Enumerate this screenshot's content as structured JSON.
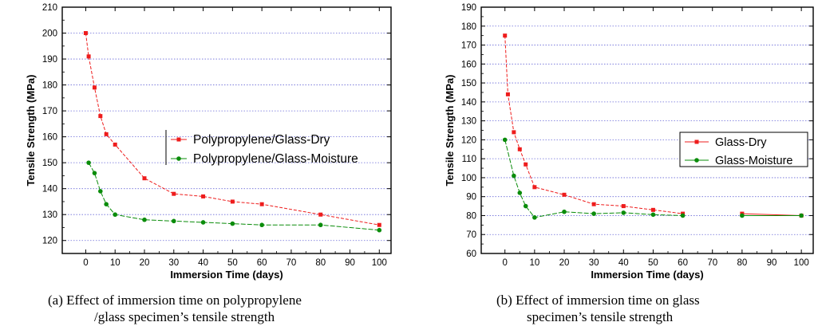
{
  "chart_data": [
    {
      "type": "line",
      "xlabel": "Immersion Time (days)",
      "ylabel": "Tensile Strength (MPa)",
      "xlim": [
        -8,
        104
      ],
      "ylim": [
        115,
        210
      ],
      "xticks": [
        0,
        10,
        20,
        30,
        40,
        50,
        60,
        70,
        80,
        90,
        100
      ],
      "yticks": [
        120,
        130,
        140,
        150,
        160,
        170,
        180,
        190,
        200,
        210
      ],
      "grid": "horizontal dotted",
      "legend_position": "middle-right",
      "series": [
        {
          "name": "Polypropylene/Glass-Dry",
          "color": "#ee1c1c",
          "marker": "square",
          "x": [
            0,
            1,
            3,
            5,
            7,
            10,
            20,
            30,
            40,
            50,
            60,
            80,
            100
          ],
          "y": [
            200,
            191,
            179,
            168,
            161,
            157,
            144,
            138,
            137,
            135,
            134,
            130,
            126
          ]
        },
        {
          "name": "Polypropylene/Glass-Moisture",
          "color": "#0a8c0a",
          "marker": "circle",
          "x": [
            1,
            3,
            5,
            7,
            10,
            20,
            30,
            40,
            50,
            60,
            80,
            100
          ],
          "y": [
            150,
            146,
            139,
            134,
            130,
            128,
            127.5,
            127,
            126.5,
            126,
            126,
            124
          ]
        }
      ]
    },
    {
      "type": "line",
      "xlabel": "Immersion Time (days)",
      "ylabel": "Tensile Strength (MPa)",
      "xlim": [
        -8,
        104
      ],
      "ylim": [
        60,
        190
      ],
      "xticks": [
        0,
        10,
        20,
        30,
        40,
        50,
        60,
        70,
        80,
        90,
        100
      ],
      "yticks": [
        60,
        70,
        80,
        90,
        100,
        110,
        120,
        130,
        140,
        150,
        160,
        170,
        180,
        190
      ],
      "grid": "horizontal dotted",
      "legend_position": "right",
      "series": [
        {
          "name": "Glass-Dry",
          "color": "#ee1c1c",
          "marker": "square",
          "x": [
            0,
            1,
            3,
            5,
            7,
            10,
            20,
            30,
            40,
            50,
            60,
            80,
            100
          ],
          "y": [
            175,
            144,
            124,
            115,
            107,
            95,
            91,
            86,
            85,
            83,
            81,
            81,
            80
          ],
          "gap_after_x": 60
        },
        {
          "name": "Glass-Moisture",
          "color": "#0a8c0a",
          "marker": "circle",
          "x": [
            0,
            3,
            5,
            7,
            10,
            20,
            30,
            40,
            50,
            60,
            80,
            100
          ],
          "y": [
            120,
            101,
            92,
            85,
            79,
            82,
            81,
            81.5,
            80.5,
            80,
            80,
            80
          ],
          "gap_after_x": 60
        }
      ]
    }
  ],
  "captions": {
    "a_line1": "(a)  Effect of immersion time on polypropylene",
    "a_line2": "/glass specimen’s tensile strength",
    "b_line1": "(b)  Effect of immersion time on glass",
    "b_line2": "specimen’s tensile strength"
  }
}
